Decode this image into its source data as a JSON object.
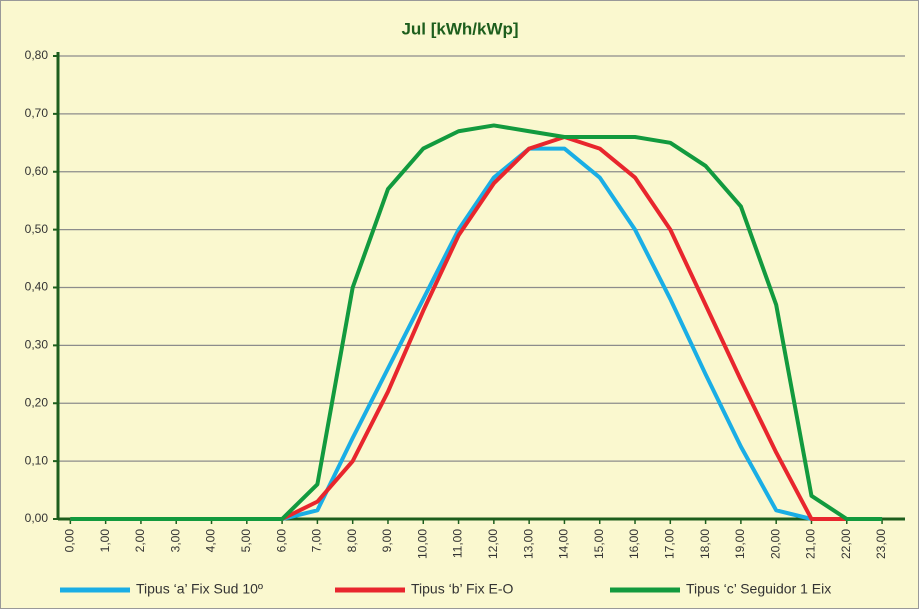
{
  "chart_data": {
    "type": "line",
    "title": "Jul [kWh/kWp]",
    "categories": [
      "0,00",
      "1,00",
      "2,00",
      "3,00",
      "4,00",
      "5,00",
      "6,00",
      "7,00",
      "8,00",
      "9,00",
      "10,00",
      "11,00",
      "12,00",
      "13,00",
      "14,00",
      "15,00",
      "16,00",
      "17,00",
      "18,00",
      "19,00",
      "20,00",
      "21,00",
      "22,00",
      "23,00"
    ],
    "series": [
      {
        "name": "Tipus ‘a’ Fix Sud 10º",
        "color": "#1aaee5",
        "values": [
          0,
          0,
          0,
          0,
          0,
          0,
          0,
          0.015,
          0.14,
          0.26,
          0.38,
          0.5,
          0.59,
          0.64,
          0.64,
          0.59,
          0.5,
          0.38,
          0.25,
          0.125,
          0.015,
          0,
          0,
          0
        ]
      },
      {
        "name": "Tipus ‘b’ Fix E-O",
        "color": "#e8262d",
        "values": [
          0,
          0,
          0,
          0,
          0,
          0,
          0,
          0.03,
          0.1,
          0.22,
          0.36,
          0.49,
          0.58,
          0.64,
          0.66,
          0.64,
          0.59,
          0.5,
          0.37,
          0.24,
          0.115,
          0,
          0,
          0
        ]
      },
      {
        "name": "Tipus ‘c’ Seguidor 1 Eix",
        "color": "#129a3e",
        "values": [
          0,
          0,
          0,
          0,
          0,
          0,
          0,
          0.06,
          0.4,
          0.57,
          0.64,
          0.67,
          0.68,
          0.67,
          0.66,
          0.66,
          0.66,
          0.65,
          0.61,
          0.54,
          0.37,
          0.04,
          0,
          0
        ]
      }
    ],
    "ylim": [
      0,
      0.8
    ],
    "yticks": [
      {
        "value": 0,
        "label": "0,00"
      },
      {
        "value": 0.1,
        "label": "0,10"
      },
      {
        "value": 0.2,
        "label": "0,20"
      },
      {
        "value": 0.3,
        "label": "0,30"
      },
      {
        "value": 0.4,
        "label": "0,40"
      },
      {
        "value": 0.5,
        "label": "0,50"
      },
      {
        "value": 0.6,
        "label": "0,60"
      },
      {
        "value": 0.7,
        "label": "0,70"
      },
      {
        "value": 0.8,
        "label": "0,80"
      }
    ],
    "grid": true
  }
}
